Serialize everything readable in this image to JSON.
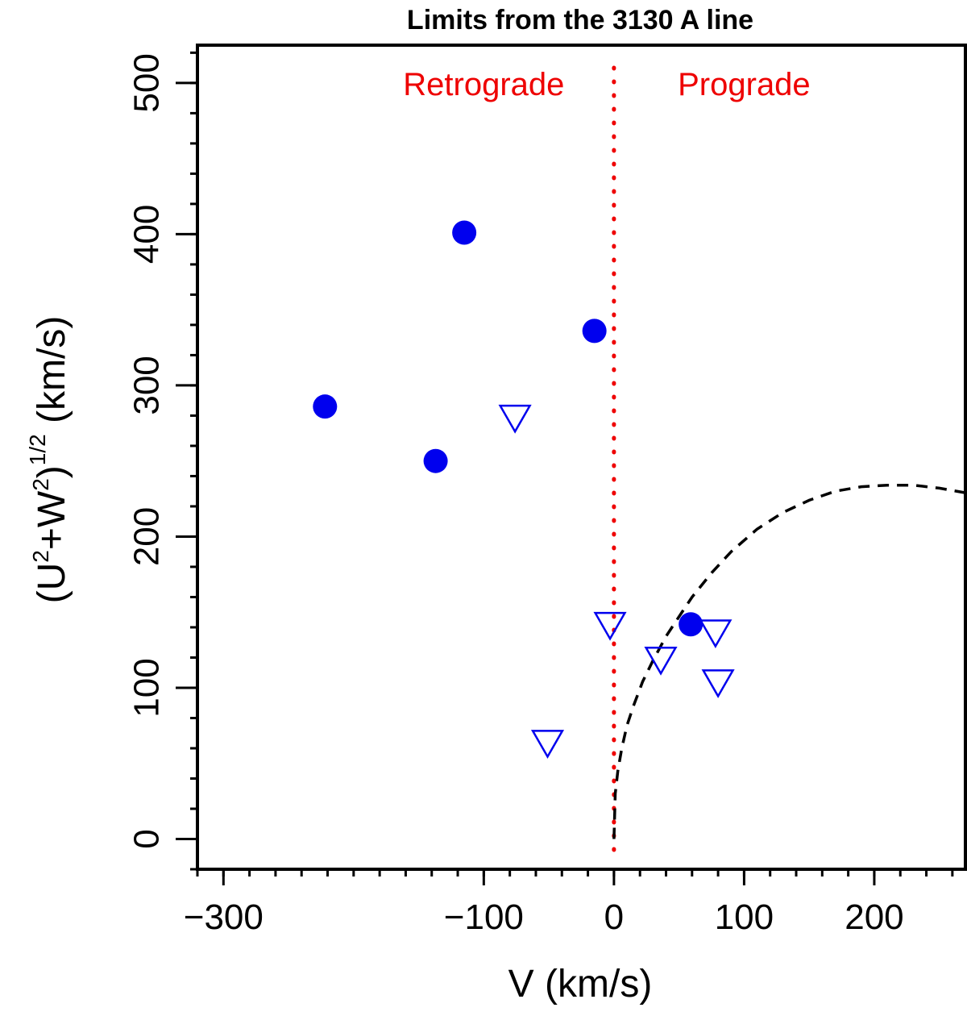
{
  "chart_data": {
    "type": "scatter",
    "title": "Limits from the 3130 A line",
    "xlabel": "V (km/s)",
    "ylabel": {
      "open": "(U",
      "sup1": "2",
      "plus": "+W",
      "sup2": "2",
      "close": ")",
      "sup3": "1/2",
      "units": " (km/s)"
    },
    "xlim": [
      -320,
      270
    ],
    "ylim": [
      -20,
      525
    ],
    "x_ticks": [
      -300,
      -100,
      0,
      100,
      200
    ],
    "x_tick_labels": [
      "−300",
      "−100",
      "0",
      "100",
      "200"
    ],
    "x_minor_step": 20,
    "y_ticks": [
      0,
      100,
      200,
      300,
      400,
      500
    ],
    "y_tick_labels": [
      "0",
      "100",
      "200",
      "300",
      "400",
      "500"
    ],
    "y_minor_step": 20,
    "series": [
      {
        "name": "detections",
        "marker": "filled-circle",
        "color": "#0000ee",
        "points": [
          {
            "x": -222,
            "y": 286
          },
          {
            "x": -115,
            "y": 401
          },
          {
            "x": -137,
            "y": 250
          },
          {
            "x": -15,
            "y": 336
          },
          {
            "x": 59,
            "y": 142
          }
        ]
      },
      {
        "name": "upper limits",
        "marker": "open-triangle-down",
        "color": "#0000ee",
        "points": [
          {
            "x": -76,
            "y": 278
          },
          {
            "x": -3,
            "y": 141
          },
          {
            "x": 36,
            "y": 118
          },
          {
            "x": 78,
            "y": 136
          },
          {
            "x": 80,
            "y": 103
          },
          {
            "x": -51,
            "y": 63
          }
        ]
      }
    ],
    "dividers": [
      {
        "name": "prograde-retrograde divider",
        "x": 0,
        "style": "dotted",
        "color": "#ee0000"
      }
    ],
    "curves": [
      {
        "name": "dashed boundary curve",
        "style": "dashed",
        "color": "#000000",
        "points": [
          [
            0,
            0
          ],
          [
            1,
            30
          ],
          [
            3,
            45
          ],
          [
            6,
            60
          ],
          [
            10,
            75
          ],
          [
            15,
            88
          ],
          [
            22,
            104
          ],
          [
            30,
            118
          ],
          [
            40,
            134
          ],
          [
            50,
            147
          ],
          [
            60,
            160
          ],
          [
            75,
            176
          ],
          [
            90,
            190
          ],
          [
            110,
            205
          ],
          [
            130,
            216
          ],
          [
            150,
            224
          ],
          [
            170,
            230
          ],
          [
            190,
            233
          ],
          [
            210,
            234
          ],
          [
            230,
            234
          ],
          [
            250,
            232
          ],
          [
            270,
            229
          ]
        ]
      }
    ],
    "annotations": [
      {
        "name": "retrograde-label",
        "text": "Retrograde",
        "x": -100,
        "y": 492,
        "color": "#ee0000"
      },
      {
        "name": "prograde-label",
        "text": "Prograde",
        "x": 100,
        "y": 492,
        "color": "#ee0000"
      }
    ],
    "grid": false,
    "legend": "none"
  }
}
